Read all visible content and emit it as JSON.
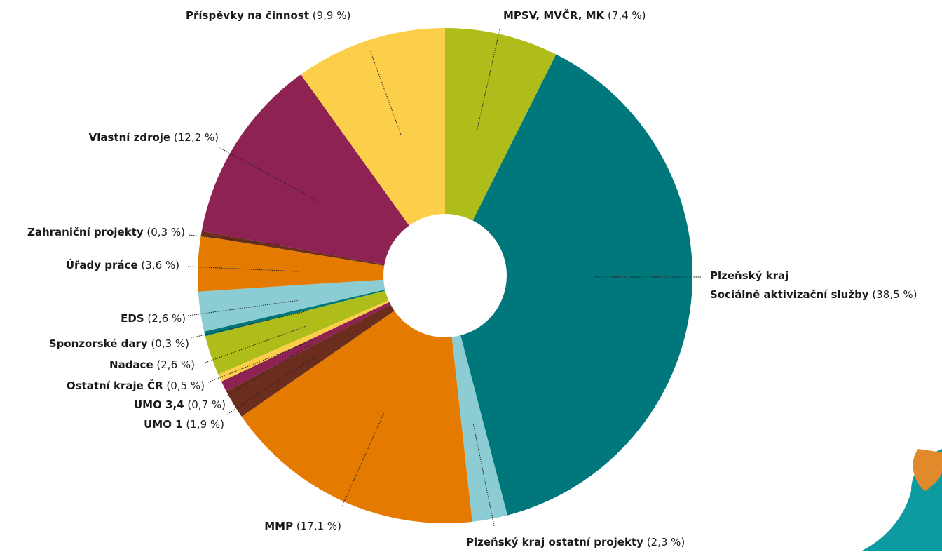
{
  "chart_data": {
    "type": "pie",
    "categories": [
      "MPSV, MVČR, MK",
      "Plzeňský kraj\nSociálně aktivizační služby",
      "Plzeňský kraj ostatní projekty",
      "MMP",
      "UMO 1",
      "UMO 3,4",
      "Ostatní kraje ČR",
      "Nadace",
      "Sponzorské dary",
      "EDS",
      "Úřady práce",
      "Zahraniční projekty",
      "Vlastní zdroje",
      "Příspěvky na činnost"
    ],
    "values": [
      7.4,
      38.5,
      2.3,
      17.1,
      1.9,
      0.7,
      0.5,
      2.6,
      0.3,
      2.6,
      3.6,
      0.3,
      12.2,
      9.9
    ],
    "value_labels": [
      "(7,4 %)",
      "(38,5 %)",
      "(2,3 %)",
      "(17,1 %)",
      "(1,9 %)",
      "(0,7 %)",
      "(0,5 %)",
      "(2,6 %)",
      "(0,3 %)",
      "(2,6 %)",
      "(3,6 %)",
      "(0,3 %)",
      "(12,2 %)",
      "(9,9 %)"
    ],
    "colors": [
      "#afbd1a",
      "#00777b",
      "#8ccdd3",
      "#e57a00",
      "#6b2e1e",
      "#8e2253",
      "#fccf4a",
      "#afbd1a",
      "#00777b",
      "#8ccdd3",
      "#e57a00",
      "#6b2e1e",
      "#8e2253",
      "#fccf4a"
    ]
  }
}
